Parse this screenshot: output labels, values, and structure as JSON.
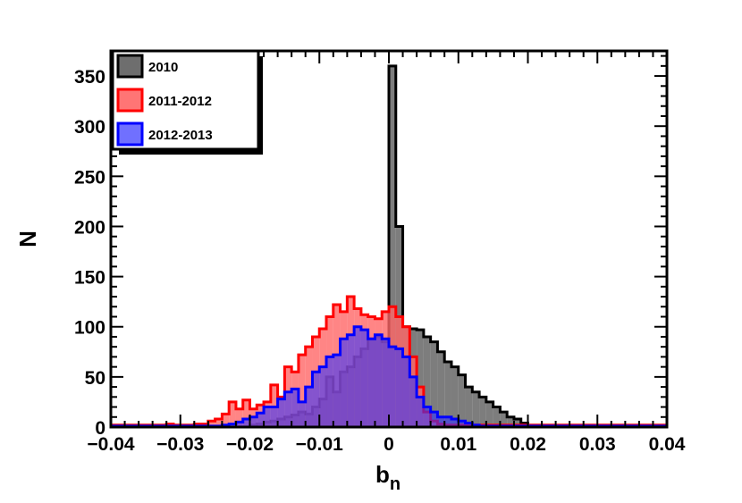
{
  "chart_data": {
    "type": "histogram",
    "title": "",
    "xlabel": "b",
    "xlabel_subscript": "n",
    "ylabel": "N",
    "xlim": [
      -0.04,
      0.04
    ],
    "ylim": [
      0,
      375
    ],
    "x_ticks": [
      -0.04,
      -0.03,
      -0.02,
      -0.01,
      0,
      0.01,
      0.02,
      0.03,
      0.04
    ],
    "x_tick_labels": [
      "−0.04",
      "−0.03",
      "−0.02",
      "−0.01",
      "0",
      "0.01",
      "0.02",
      "0.03",
      "0.04"
    ],
    "y_ticks": [
      0,
      50,
      100,
      150,
      200,
      250,
      300,
      350
    ],
    "y_tick_labels": [
      "0",
      "50",
      "100",
      "150",
      "200",
      "250",
      "300",
      "350"
    ],
    "bin_width": 0.001,
    "legend_position": "top-left",
    "grid": false,
    "series": [
      {
        "name": "2010",
        "edge_color": "#000000",
        "fill_color": "#666666",
        "fill_opacity": 0.85,
        "bins": [
          [
            -0.034,
            0
          ],
          [
            -0.033,
            0
          ],
          [
            -0.032,
            0
          ],
          [
            -0.031,
            0
          ],
          [
            -0.03,
            0
          ],
          [
            -0.029,
            0
          ],
          [
            -0.028,
            0
          ],
          [
            -0.027,
            0
          ],
          [
            -0.026,
            0
          ],
          [
            -0.025,
            0
          ],
          [
            -0.024,
            0
          ],
          [
            -0.023,
            0
          ],
          [
            -0.022,
            0
          ],
          [
            -0.021,
            0
          ],
          [
            -0.02,
            2
          ],
          [
            -0.019,
            3
          ],
          [
            -0.018,
            5
          ],
          [
            -0.017,
            6
          ],
          [
            -0.016,
            8
          ],
          [
            -0.015,
            10
          ],
          [
            -0.014,
            12
          ],
          [
            -0.013,
            15
          ],
          [
            -0.012,
            13
          ],
          [
            -0.011,
            20
          ],
          [
            -0.01,
            28
          ],
          [
            -0.009,
            50
          ],
          [
            -0.008,
            35
          ],
          [
            -0.007,
            55
          ],
          [
            -0.006,
            60
          ],
          [
            -0.005,
            70
          ],
          [
            -0.004,
            78
          ],
          [
            -0.003,
            88
          ],
          [
            -0.002,
            90
          ],
          [
            -0.001,
            85
          ],
          [
            0.0,
            360
          ],
          [
            0.001,
            200
          ],
          [
            0.002,
            100
          ],
          [
            0.003,
            98
          ],
          [
            0.004,
            97
          ],
          [
            0.005,
            90
          ],
          [
            0.006,
            85
          ],
          [
            0.007,
            75
          ],
          [
            0.008,
            65
          ],
          [
            0.009,
            60
          ],
          [
            0.01,
            52
          ],
          [
            0.011,
            40
          ],
          [
            0.012,
            35
          ],
          [
            0.013,
            30
          ],
          [
            0.014,
            25
          ],
          [
            0.015,
            20
          ],
          [
            0.016,
            15
          ],
          [
            0.017,
            10
          ],
          [
            0.018,
            8
          ],
          [
            0.019,
            4
          ],
          [
            0.02,
            0
          ],
          [
            0.021,
            0
          ],
          [
            0.022,
            0
          ],
          [
            0.023,
            0
          ],
          [
            0.024,
            0
          ],
          [
            0.025,
            0
          ],
          [
            0.026,
            0
          ],
          [
            0.027,
            0
          ],
          [
            0.028,
            0
          ],
          [
            0.029,
            0
          ],
          [
            0.03,
            0
          ],
          [
            0.031,
            0
          ],
          [
            0.032,
            0
          ],
          [
            0.033,
            0
          ],
          [
            0.034,
            0
          ],
          [
            0.035,
            0
          ],
          [
            0.036,
            0
          ],
          [
            0.037,
            0
          ],
          [
            0.038,
            0
          ],
          [
            0.039,
            0
          ]
        ]
      },
      {
        "name": "2011-2012",
        "edge_color": "#ff0000",
        "fill_color": "#ff6666",
        "fill_opacity": 0.8,
        "bins": [
          [
            -0.04,
            2
          ],
          [
            -0.039,
            2
          ],
          [
            -0.038,
            2
          ],
          [
            -0.037,
            2
          ],
          [
            -0.036,
            2
          ],
          [
            -0.035,
            2
          ],
          [
            -0.034,
            2
          ],
          [
            -0.033,
            2
          ],
          [
            -0.032,
            3
          ],
          [
            -0.031,
            2
          ],
          [
            -0.03,
            2
          ],
          [
            -0.029,
            2
          ],
          [
            -0.028,
            3
          ],
          [
            -0.027,
            3
          ],
          [
            -0.026,
            6
          ],
          [
            -0.025,
            8
          ],
          [
            -0.024,
            13
          ],
          [
            -0.023,
            25
          ],
          [
            -0.022,
            18
          ],
          [
            -0.021,
            27
          ],
          [
            -0.02,
            18
          ],
          [
            -0.019,
            22
          ],
          [
            -0.018,
            25
          ],
          [
            -0.017,
            42
          ],
          [
            -0.016,
            30
          ],
          [
            -0.015,
            60
          ],
          [
            -0.014,
            55
          ],
          [
            -0.013,
            72
          ],
          [
            -0.012,
            80
          ],
          [
            -0.011,
            90
          ],
          [
            -0.01,
            98
          ],
          [
            -0.009,
            110
          ],
          [
            -0.008,
            122
          ],
          [
            -0.007,
            115
          ],
          [
            -0.006,
            130
          ],
          [
            -0.005,
            118
          ],
          [
            -0.004,
            112
          ],
          [
            -0.003,
            110
          ],
          [
            -0.002,
            108
          ],
          [
            -0.001,
            115
          ],
          [
            0.0,
            120
          ],
          [
            0.001,
            110
          ],
          [
            0.002,
            100
          ],
          [
            0.003,
            70
          ],
          [
            0.004,
            40
          ],
          [
            0.005,
            15
          ],
          [
            0.006,
            6
          ],
          [
            0.007,
            3
          ],
          [
            0.008,
            2
          ],
          [
            0.009,
            2
          ],
          [
            0.01,
            2
          ],
          [
            0.011,
            2
          ],
          [
            0.012,
            2
          ],
          [
            0.013,
            2
          ],
          [
            0.014,
            2
          ],
          [
            0.015,
            2
          ],
          [
            0.016,
            2
          ],
          [
            0.017,
            2
          ],
          [
            0.018,
            2
          ],
          [
            0.019,
            2
          ],
          [
            0.02,
            2
          ],
          [
            0.021,
            2
          ],
          [
            0.022,
            2
          ],
          [
            0.023,
            2
          ],
          [
            0.024,
            2
          ],
          [
            0.025,
            2
          ],
          [
            0.026,
            2
          ],
          [
            0.027,
            2
          ],
          [
            0.028,
            2
          ],
          [
            0.029,
            2
          ],
          [
            0.03,
            2
          ],
          [
            0.031,
            2
          ],
          [
            0.032,
            2
          ],
          [
            0.033,
            2
          ],
          [
            0.034,
            2
          ],
          [
            0.035,
            2
          ],
          [
            0.036,
            2
          ],
          [
            0.037,
            2
          ],
          [
            0.038,
            2
          ],
          [
            0.039,
            2
          ]
        ]
      },
      {
        "name": "2012-2013",
        "edge_color": "#0000ff",
        "fill_color": "#3333ff",
        "fill_opacity": 0.6,
        "bins": [
          [
            -0.04,
            1
          ],
          [
            -0.039,
            1
          ],
          [
            -0.038,
            1
          ],
          [
            -0.037,
            1
          ],
          [
            -0.036,
            1
          ],
          [
            -0.035,
            1
          ],
          [
            -0.034,
            1
          ],
          [
            -0.033,
            1
          ],
          [
            -0.032,
            1
          ],
          [
            -0.031,
            1
          ],
          [
            -0.03,
            1
          ],
          [
            -0.029,
            1
          ],
          [
            -0.028,
            1
          ],
          [
            -0.027,
            1
          ],
          [
            -0.026,
            1
          ],
          [
            -0.025,
            1
          ],
          [
            -0.024,
            2
          ],
          [
            -0.023,
            3
          ],
          [
            -0.022,
            5
          ],
          [
            -0.021,
            8
          ],
          [
            -0.02,
            10
          ],
          [
            -0.019,
            14
          ],
          [
            -0.018,
            20
          ],
          [
            -0.017,
            20
          ],
          [
            -0.016,
            28
          ],
          [
            -0.015,
            35
          ],
          [
            -0.014,
            38
          ],
          [
            -0.013,
            25
          ],
          [
            -0.012,
            40
          ],
          [
            -0.011,
            55
          ],
          [
            -0.01,
            60
          ],
          [
            -0.009,
            70
          ],
          [
            -0.008,
            72
          ],
          [
            -0.007,
            88
          ],
          [
            -0.006,
            92
          ],
          [
            -0.005,
            100
          ],
          [
            -0.004,
            97
          ],
          [
            -0.003,
            88
          ],
          [
            -0.002,
            92
          ],
          [
            -0.001,
            88
          ],
          [
            0.0,
            80
          ],
          [
            0.001,
            78
          ],
          [
            0.002,
            70
          ],
          [
            0.003,
            50
          ],
          [
            0.004,
            30
          ],
          [
            0.005,
            20
          ],
          [
            0.006,
            15
          ],
          [
            0.007,
            10
          ],
          [
            0.008,
            10
          ],
          [
            0.009,
            8
          ],
          [
            0.01,
            6
          ],
          [
            0.011,
            4
          ],
          [
            0.012,
            2
          ],
          [
            0.013,
            1
          ],
          [
            0.014,
            1
          ],
          [
            0.015,
            1
          ],
          [
            0.016,
            1
          ],
          [
            0.017,
            1
          ],
          [
            0.018,
            1
          ],
          [
            0.019,
            1
          ],
          [
            0.02,
            1
          ],
          [
            0.021,
            1
          ],
          [
            0.022,
            1
          ],
          [
            0.023,
            1
          ],
          [
            0.024,
            1
          ],
          [
            0.025,
            1
          ],
          [
            0.026,
            1
          ],
          [
            0.027,
            1
          ],
          [
            0.028,
            1
          ],
          [
            0.029,
            1
          ],
          [
            0.03,
            1
          ],
          [
            0.031,
            1
          ],
          [
            0.032,
            1
          ],
          [
            0.033,
            1
          ],
          [
            0.034,
            1
          ],
          [
            0.035,
            1
          ],
          [
            0.036,
            1
          ],
          [
            0.037,
            1
          ],
          [
            0.038,
            1
          ],
          [
            0.039,
            1
          ]
        ]
      }
    ]
  }
}
